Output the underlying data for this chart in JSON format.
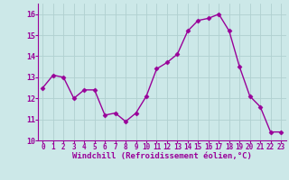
{
  "x": [
    0,
    1,
    2,
    3,
    4,
    5,
    6,
    7,
    8,
    9,
    10,
    11,
    12,
    13,
    14,
    15,
    16,
    17,
    18,
    19,
    20,
    21,
    22,
    23
  ],
  "y": [
    12.5,
    13.1,
    13.0,
    12.0,
    12.4,
    12.4,
    11.2,
    11.3,
    10.9,
    11.3,
    12.1,
    13.4,
    13.7,
    14.1,
    15.2,
    15.7,
    15.8,
    16.0,
    15.2,
    13.5,
    12.1,
    11.6,
    10.4,
    10.4
  ],
  "line_color": "#990099",
  "marker": "D",
  "markersize": 2.5,
  "linewidth": 1.0,
  "xlabel": "Windchill (Refroidissement éolien,°C)",
  "xlabel_fontsize": 6.5,
  "ylim": [
    10,
    16.5
  ],
  "xlim": [
    -0.5,
    23.5
  ],
  "yticks": [
    10,
    11,
    12,
    13,
    14,
    15,
    16
  ],
  "xtick_labels": [
    "0",
    "1",
    "2",
    "3",
    "4",
    "5",
    "6",
    "7",
    "8",
    "9",
    "10",
    "11",
    "12",
    "13",
    "14",
    "15",
    "16",
    "17",
    "18",
    "19",
    "20",
    "21",
    "22",
    "23"
  ],
  "bg_color": "#cce8e8",
  "grid_color": "#b0d0d0",
  "tick_color": "#990099",
  "ytick_fontsize": 6.0,
  "xtick_fontsize": 5.5
}
